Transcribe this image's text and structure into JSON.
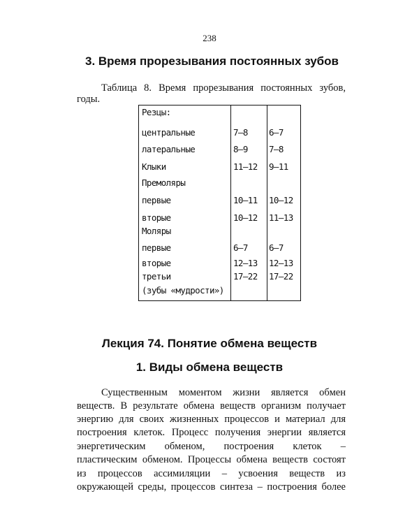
{
  "page_number": "238",
  "section_heading": "3. Время прорезывания постоянных зубов",
  "caption_lines": [
    "Таблица 8. Время прорезывания постоянных зубов,",
    "годы."
  ],
  "table": {
    "rows": [
      [
        "Резцы:"
      ],
      [
        "центральные",
        "7–8",
        "6–7"
      ],
      [
        "латеральные",
        "8–9",
        "7–8"
      ],
      [
        "Клыки",
        "11–12",
        "9–11"
      ],
      [
        "Премоляры"
      ],
      [
        "первые",
        "10–11",
        "10–12"
      ],
      [
        "вторые",
        "10–12",
        "11–13"
      ],
      [
        "Моляры"
      ],
      [
        "первые",
        "6–7",
        "6–7"
      ],
      [
        "вторые",
        "12–13",
        "12–13"
      ],
      [
        "третьи",
        "17–22",
        "17–22"
      ],
      [
        "(зубы «мудрости»)"
      ]
    ]
  },
  "lecture_heading": "Лекция 74. Понятие обмена веществ",
  "subheading": "1. Виды обмена веществ",
  "paragraph_lines": [
    "Существенным моментом жизни является обмен",
    "веществ. В результате обмена веществ организм получает",
    "энергию для своих жизненных процессов и материал для",
    "построения клеток. Процесс получения энергии является",
    "энергетическим обменом, построения клеток –",
    "пластическим обменом. Процессы обмена веществ состоят",
    "из процессов ассимиляции – усвоения веществ из",
    "окружающей среды, процессов синтеза – построения более"
  ]
}
